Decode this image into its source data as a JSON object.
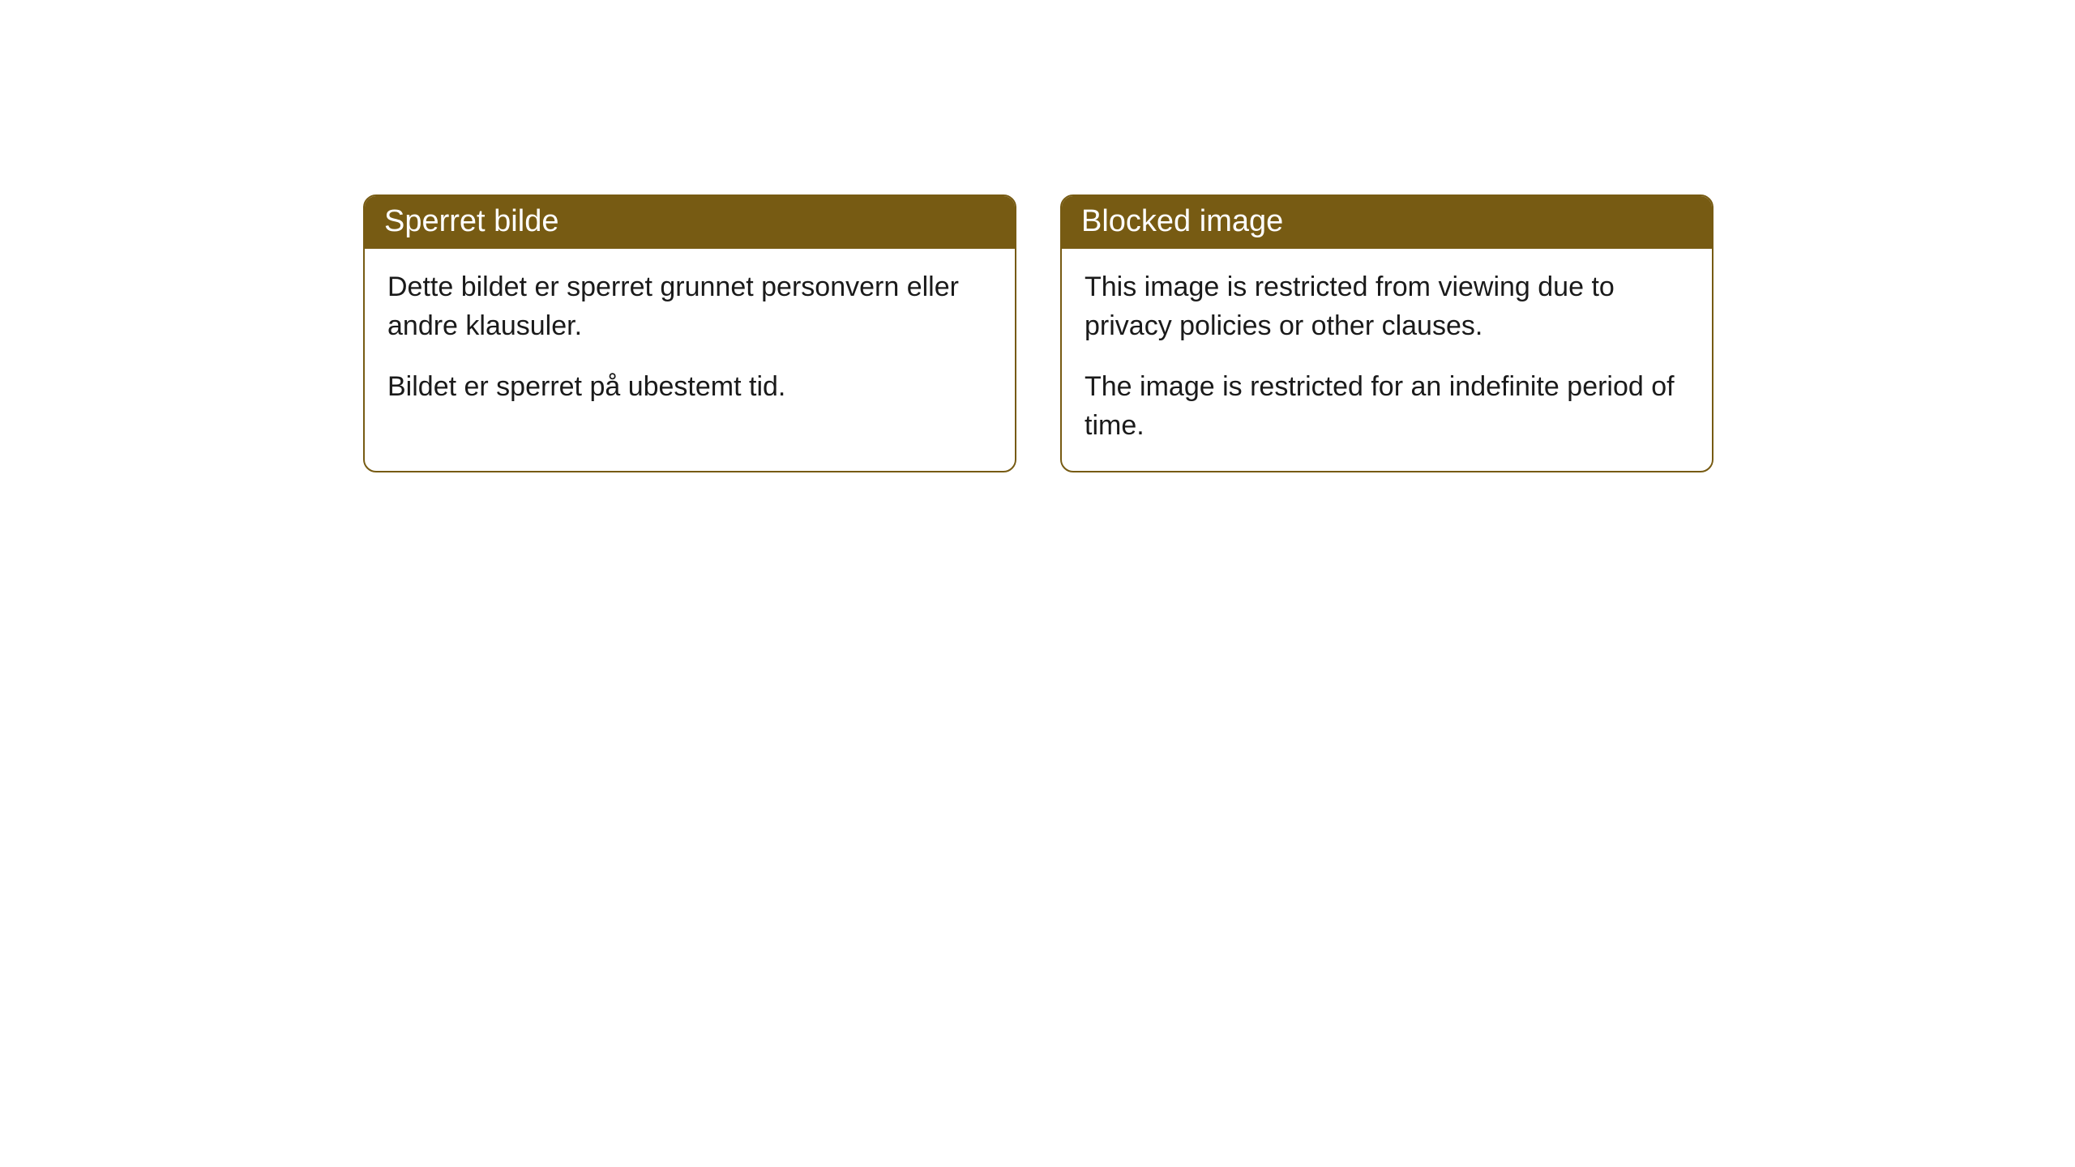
{
  "cards": [
    {
      "title": "Sperret bilde",
      "paragraph1": "Dette bildet er sperret grunnet personvern eller andre klausuler.",
      "paragraph2": "Bildet er sperret på ubestemt tid."
    },
    {
      "title": "Blocked image",
      "paragraph1": "This image is restricted from viewing due to privacy policies or other clauses.",
      "paragraph2": "The image is restricted for an indefinite period of time."
    }
  ],
  "styling": {
    "header_background": "#775b13",
    "header_text_color": "#ffffff",
    "border_color": "#775b13",
    "body_background": "#ffffff",
    "body_text_color": "#1a1a1a",
    "border_radius": 16,
    "title_fontsize": 38,
    "body_fontsize": 34
  }
}
